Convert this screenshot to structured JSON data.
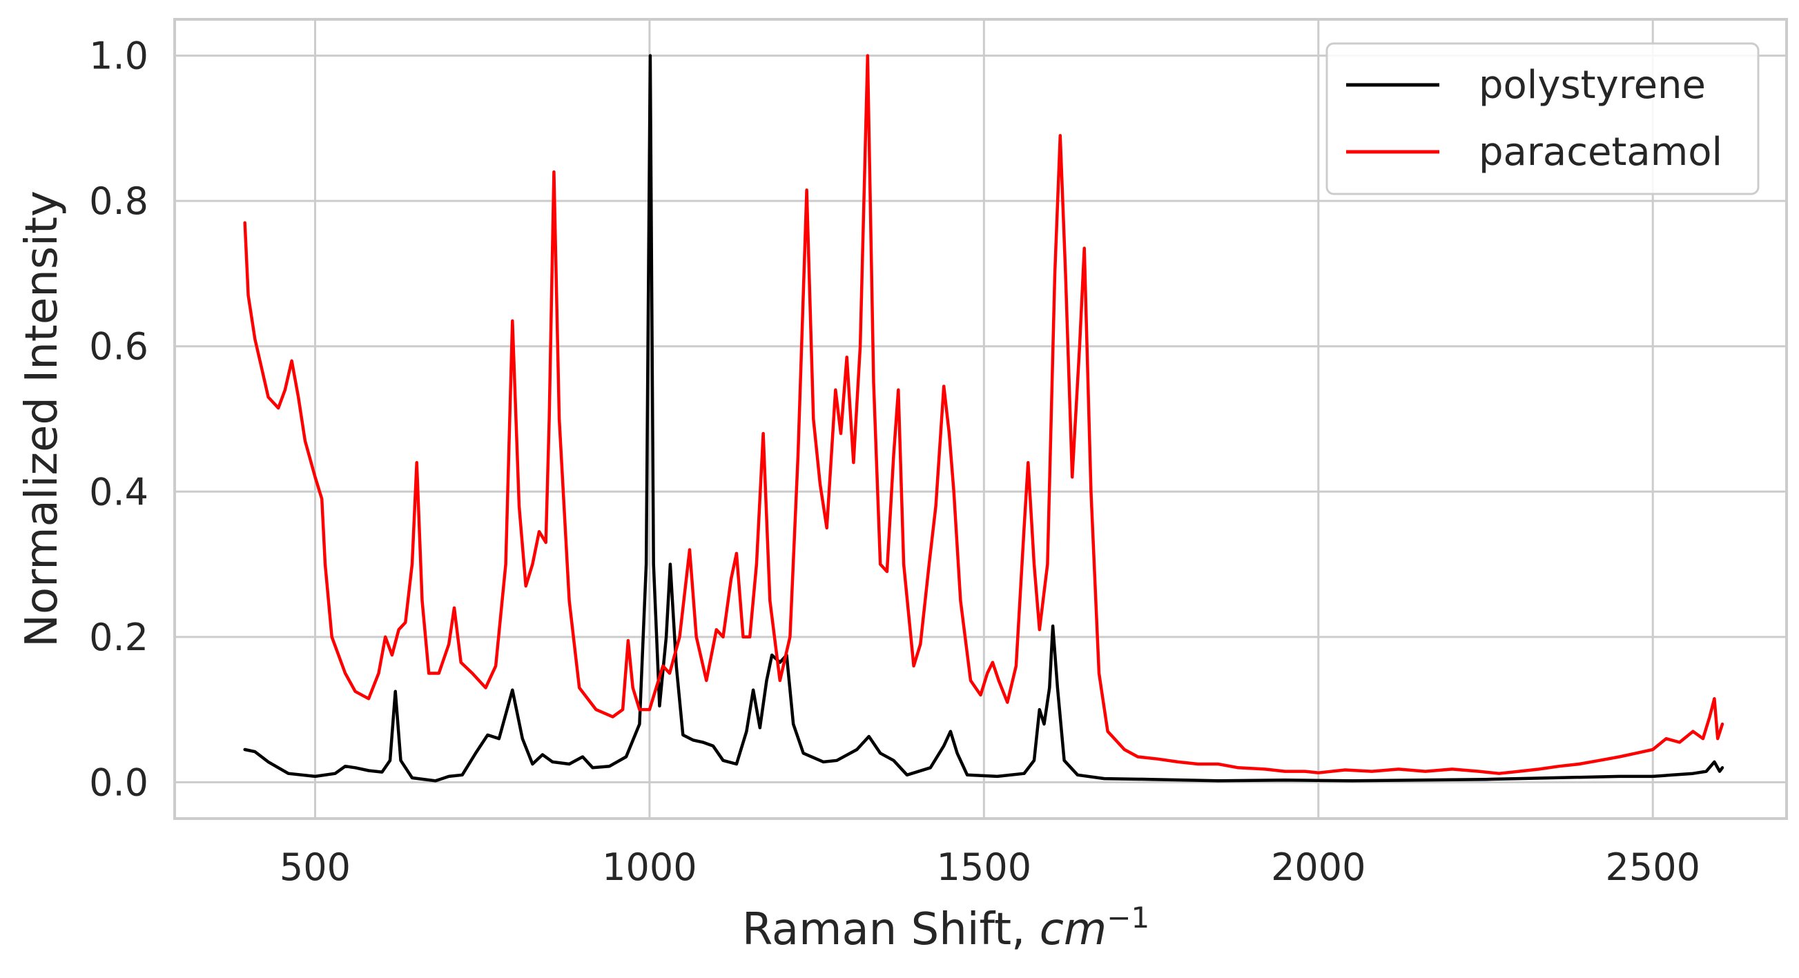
{
  "chart_data": {
    "type": "line",
    "xlabel": "Raman Shift, ",
    "xlabel_unit": "cm",
    "xlabel_exponent": "−1",
    "ylabel": "Normalized Intensity",
    "xlim": [
      290,
      2700
    ],
    "ylim": [
      -0.05,
      1.05
    ],
    "x_ticks": [
      500,
      1000,
      1500,
      2000,
      2500
    ],
    "x_tick_labels": [
      "500",
      "1000",
      "1500",
      "2000",
      "2500"
    ],
    "y_ticks": [
      0.0,
      0.2,
      0.4,
      0.6,
      0.8,
      1.0
    ],
    "y_tick_labels": [
      "0.0",
      "0.2",
      "0.4",
      "0.6",
      "0.8",
      "1.0"
    ],
    "grid": true,
    "legend_position": "top-right",
    "series": [
      {
        "name": "polystyrene",
        "color": "#000000",
        "points": [
          [
            395,
            0.045
          ],
          [
            410,
            0.042
          ],
          [
            430,
            0.028
          ],
          [
            460,
            0.012
          ],
          [
            500,
            0.008
          ],
          [
            530,
            0.012
          ],
          [
            545,
            0.022
          ],
          [
            560,
            0.02
          ],
          [
            580,
            0.016
          ],
          [
            600,
            0.014
          ],
          [
            612,
            0.03
          ],
          [
            620,
            0.125
          ],
          [
            628,
            0.03
          ],
          [
            645,
            0.006
          ],
          [
            680,
            0.002
          ],
          [
            700,
            0.008
          ],
          [
            720,
            0.01
          ],
          [
            740,
            0.04
          ],
          [
            758,
            0.065
          ],
          [
            775,
            0.06
          ],
          [
            795,
            0.127
          ],
          [
            810,
            0.06
          ],
          [
            825,
            0.025
          ],
          [
            840,
            0.038
          ],
          [
            855,
            0.028
          ],
          [
            880,
            0.025
          ],
          [
            900,
            0.035
          ],
          [
            915,
            0.02
          ],
          [
            940,
            0.022
          ],
          [
            965,
            0.035
          ],
          [
            985,
            0.08
          ],
          [
            995,
            0.3
          ],
          [
            1001,
            1.0
          ],
          [
            1006,
            0.3
          ],
          [
            1015,
            0.105
          ],
          [
            1025,
            0.2
          ],
          [
            1031,
            0.3
          ],
          [
            1040,
            0.16
          ],
          [
            1050,
            0.065
          ],
          [
            1065,
            0.058
          ],
          [
            1080,
            0.055
          ],
          [
            1095,
            0.05
          ],
          [
            1110,
            0.03
          ],
          [
            1130,
            0.025
          ],
          [
            1145,
            0.07
          ],
          [
            1155,
            0.127
          ],
          [
            1165,
            0.075
          ],
          [
            1175,
            0.14
          ],
          [
            1183,
            0.175
          ],
          [
            1195,
            0.165
          ],
          [
            1205,
            0.175
          ],
          [
            1215,
            0.08
          ],
          [
            1230,
            0.04
          ],
          [
            1260,
            0.028
          ],
          [
            1280,
            0.03
          ],
          [
            1310,
            0.045
          ],
          [
            1328,
            0.063
          ],
          [
            1345,
            0.04
          ],
          [
            1365,
            0.03
          ],
          [
            1385,
            0.01
          ],
          [
            1420,
            0.02
          ],
          [
            1440,
            0.05
          ],
          [
            1450,
            0.07
          ],
          [
            1460,
            0.04
          ],
          [
            1475,
            0.01
          ],
          [
            1520,
            0.008
          ],
          [
            1560,
            0.012
          ],
          [
            1575,
            0.03
          ],
          [
            1583,
            0.1
          ],
          [
            1590,
            0.08
          ],
          [
            1598,
            0.13
          ],
          [
            1603,
            0.215
          ],
          [
            1610,
            0.13
          ],
          [
            1620,
            0.03
          ],
          [
            1640,
            0.01
          ],
          [
            1680,
            0.005
          ],
          [
            1750,
            0.004
          ],
          [
            1850,
            0.002
          ],
          [
            1950,
            0.003
          ],
          [
            2050,
            0.002
          ],
          [
            2150,
            0.003
          ],
          [
            2250,
            0.004
          ],
          [
            2350,
            0.006
          ],
          [
            2450,
            0.008
          ],
          [
            2500,
            0.008
          ],
          [
            2530,
            0.01
          ],
          [
            2560,
            0.012
          ],
          [
            2580,
            0.015
          ],
          [
            2592,
            0.028
          ],
          [
            2600,
            0.015
          ],
          [
            2604,
            0.02
          ]
        ]
      },
      {
        "name": "paracetamol",
        "color": "#ff0000",
        "points": [
          [
            395,
            0.77
          ],
          [
            400,
            0.67
          ],
          [
            410,
            0.61
          ],
          [
            420,
            0.57
          ],
          [
            430,
            0.53
          ],
          [
            445,
            0.515
          ],
          [
            455,
            0.54
          ],
          [
            465,
            0.58
          ],
          [
            475,
            0.53
          ],
          [
            485,
            0.47
          ],
          [
            500,
            0.42
          ],
          [
            510,
            0.39
          ],
          [
            515,
            0.3
          ],
          [
            525,
            0.2
          ],
          [
            545,
            0.15
          ],
          [
            560,
            0.125
          ],
          [
            580,
            0.115
          ],
          [
            595,
            0.15
          ],
          [
            605,
            0.2
          ],
          [
            615,
            0.175
          ],
          [
            625,
            0.21
          ],
          [
            635,
            0.22
          ],
          [
            645,
            0.3
          ],
          [
            652,
            0.44
          ],
          [
            660,
            0.25
          ],
          [
            670,
            0.15
          ],
          [
            685,
            0.15
          ],
          [
            700,
            0.19
          ],
          [
            708,
            0.24
          ],
          [
            718,
            0.165
          ],
          [
            735,
            0.15
          ],
          [
            755,
            0.13
          ],
          [
            770,
            0.16
          ],
          [
            785,
            0.3
          ],
          [
            795,
            0.635
          ],
          [
            805,
            0.38
          ],
          [
            815,
            0.27
          ],
          [
            825,
            0.3
          ],
          [
            835,
            0.345
          ],
          [
            845,
            0.33
          ],
          [
            850,
            0.5
          ],
          [
            857,
            0.84
          ],
          [
            865,
            0.5
          ],
          [
            880,
            0.25
          ],
          [
            895,
            0.13
          ],
          [
            920,
            0.1
          ],
          [
            945,
            0.09
          ],
          [
            960,
            0.1
          ],
          [
            968,
            0.195
          ],
          [
            975,
            0.13
          ],
          [
            985,
            0.1
          ],
          [
            1000,
            0.1
          ],
          [
            1010,
            0.13
          ],
          [
            1020,
            0.16
          ],
          [
            1030,
            0.15
          ],
          [
            1045,
            0.2
          ],
          [
            1060,
            0.32
          ],
          [
            1070,
            0.2
          ],
          [
            1085,
            0.14
          ],
          [
            1100,
            0.21
          ],
          [
            1110,
            0.2
          ],
          [
            1122,
            0.28
          ],
          [
            1130,
            0.315
          ],
          [
            1140,
            0.2
          ],
          [
            1150,
            0.2
          ],
          [
            1160,
            0.3
          ],
          [
            1170,
            0.48
          ],
          [
            1180,
            0.25
          ],
          [
            1195,
            0.14
          ],
          [
            1210,
            0.2
          ],
          [
            1222,
            0.45
          ],
          [
            1235,
            0.815
          ],
          [
            1245,
            0.5
          ],
          [
            1255,
            0.41
          ],
          [
            1265,
            0.35
          ],
          [
            1278,
            0.54
          ],
          [
            1286,
            0.48
          ],
          [
            1295,
            0.585
          ],
          [
            1305,
            0.44
          ],
          [
            1315,
            0.6
          ],
          [
            1326,
            1.0
          ],
          [
            1335,
            0.55
          ],
          [
            1345,
            0.3
          ],
          [
            1355,
            0.29
          ],
          [
            1365,
            0.45
          ],
          [
            1372,
            0.54
          ],
          [
            1380,
            0.3
          ],
          [
            1395,
            0.16
          ],
          [
            1405,
            0.19
          ],
          [
            1418,
            0.3
          ],
          [
            1428,
            0.38
          ],
          [
            1440,
            0.545
          ],
          [
            1448,
            0.48
          ],
          [
            1455,
            0.4
          ],
          [
            1465,
            0.25
          ],
          [
            1480,
            0.14
          ],
          [
            1495,
            0.12
          ],
          [
            1505,
            0.15
          ],
          [
            1513,
            0.165
          ],
          [
            1522,
            0.14
          ],
          [
            1535,
            0.11
          ],
          [
            1548,
            0.16
          ],
          [
            1560,
            0.35
          ],
          [
            1566,
            0.44
          ],
          [
            1575,
            0.3
          ],
          [
            1583,
            0.21
          ],
          [
            1595,
            0.3
          ],
          [
            1606,
            0.7
          ],
          [
            1614,
            0.89
          ],
          [
            1622,
            0.7
          ],
          [
            1632,
            0.42
          ],
          [
            1643,
            0.6
          ],
          [
            1650,
            0.735
          ],
          [
            1660,
            0.4
          ],
          [
            1672,
            0.15
          ],
          [
            1685,
            0.07
          ],
          [
            1710,
            0.045
          ],
          [
            1730,
            0.035
          ],
          [
            1760,
            0.032
          ],
          [
            1790,
            0.028
          ],
          [
            1820,
            0.025
          ],
          [
            1850,
            0.025
          ],
          [
            1880,
            0.02
          ],
          [
            1920,
            0.018
          ],
          [
            1950,
            0.015
          ],
          [
            1980,
            0.015
          ],
          [
            2000,
            0.013
          ],
          [
            2040,
            0.017
          ],
          [
            2080,
            0.015
          ],
          [
            2120,
            0.018
          ],
          [
            2160,
            0.015
          ],
          [
            2200,
            0.018
          ],
          [
            2240,
            0.015
          ],
          [
            2270,
            0.012
          ],
          [
            2300,
            0.015
          ],
          [
            2330,
            0.018
          ],
          [
            2360,
            0.022
          ],
          [
            2390,
            0.025
          ],
          [
            2420,
            0.03
          ],
          [
            2450,
            0.035
          ],
          [
            2475,
            0.04
          ],
          [
            2500,
            0.045
          ],
          [
            2520,
            0.06
          ],
          [
            2540,
            0.055
          ],
          [
            2560,
            0.07
          ],
          [
            2575,
            0.06
          ],
          [
            2585,
            0.09
          ],
          [
            2592,
            0.115
          ],
          [
            2597,
            0.06
          ],
          [
            2604,
            0.08
          ]
        ]
      }
    ]
  }
}
